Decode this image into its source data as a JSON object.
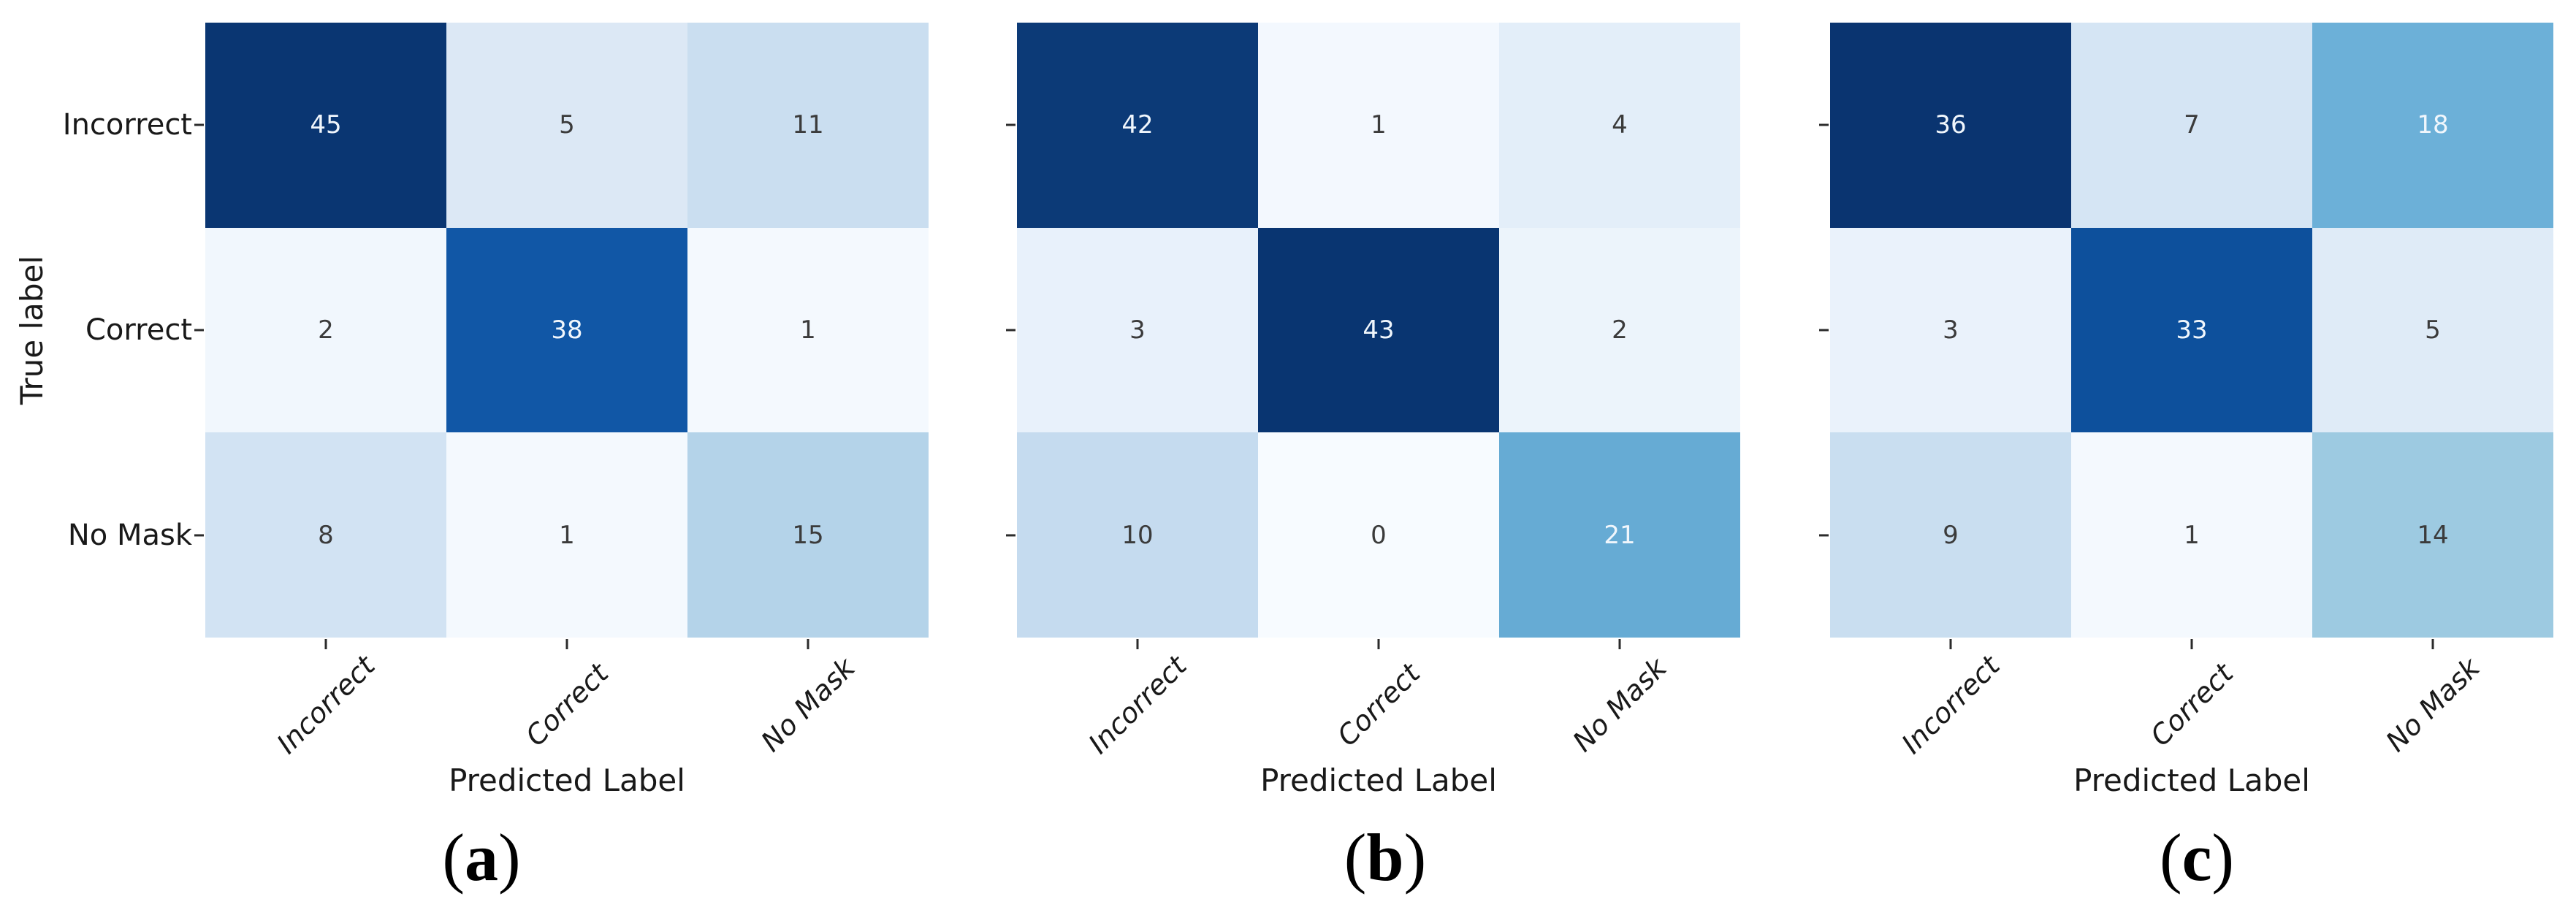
{
  "figure": {
    "x_axis_title": "Predicted Label",
    "y_axis_title": "True label",
    "row_labels": [
      "Incorrect",
      "Correct",
      "No Mask"
    ],
    "col_labels": [
      "Incorrect",
      "Correct",
      "No Mask"
    ],
    "caption_paren_open": "(",
    "caption_paren_close": ")",
    "caption_letters": [
      "a",
      "b",
      "c"
    ],
    "colormap": "Blues",
    "text_palette": {
      "dark_text": "#3b3b3b",
      "light_text": "#f0f6fc"
    },
    "panels": [
      {
        "caption": "a",
        "cell_colors": [
          [
            "#0a3672",
            "#dce8f5",
            "#cadef0"
          ],
          [
            "#f1f7fd",
            "#1157a6",
            "#f4f9fe"
          ],
          [
            "#d2e3f3",
            "#f4f9fe",
            "#b4d3e9"
          ]
        ],
        "text_tones": [
          [
            "light",
            "dark",
            "dark"
          ],
          [
            "dark",
            "light",
            "dark"
          ],
          [
            "dark",
            "dark",
            "dark"
          ]
        ]
      },
      {
        "caption": "b",
        "cell_colors": [
          [
            "#0c3a77",
            "#f3f8fe",
            "#e3eef9"
          ],
          [
            "#e8f1fb",
            "#093571",
            "#ecf4fb"
          ],
          [
            "#c5dbef",
            "#f7fbff",
            "#66abd4"
          ]
        ],
        "text_tones": [
          [
            "light",
            "dark",
            "dark"
          ],
          [
            "dark",
            "light",
            "dark"
          ],
          [
            "dark",
            "dark",
            "light"
          ]
        ]
      },
      {
        "caption": "c",
        "cell_colors": [
          [
            "#0a3470",
            "#d5e5f4",
            "#6cb0d8"
          ],
          [
            "#eaf2fb",
            "#0d509c",
            "#dfebf7"
          ],
          [
            "#c9def0",
            "#f4f9fe",
            "#9dcae1"
          ]
        ],
        "text_tones": [
          [
            "light",
            "dark",
            "light"
          ],
          [
            "dark",
            "light",
            "dark"
          ],
          [
            "dark",
            "dark",
            "dark"
          ]
        ]
      }
    ]
  },
  "chart_data": [
    {
      "type": "heatmap",
      "title": "(a)",
      "x": [
        "Incorrect",
        "Correct",
        "No Mask"
      ],
      "y": [
        "Incorrect",
        "Correct",
        "No Mask"
      ],
      "xlabel": "Predicted Label",
      "ylabel": "True label",
      "values": [
        [
          45,
          5,
          11
        ],
        [
          2,
          38,
          1
        ],
        [
          8,
          1,
          15
        ]
      ],
      "colormap": "Blues",
      "vmin": 0,
      "vmax": 45,
      "legend": "none",
      "grid": false
    },
    {
      "type": "heatmap",
      "title": "(b)",
      "x": [
        "Incorrect",
        "Correct",
        "No Mask"
      ],
      "y": [
        "Incorrect",
        "Correct",
        "No Mask"
      ],
      "xlabel": "Predicted Label",
      "ylabel": "",
      "values": [
        [
          42,
          1,
          4
        ],
        [
          3,
          43,
          2
        ],
        [
          10,
          0,
          21
        ]
      ],
      "colormap": "Blues",
      "vmin": 0,
      "vmax": 43,
      "legend": "none",
      "grid": false
    },
    {
      "type": "heatmap",
      "title": "(c)",
      "x": [
        "Incorrect",
        "Correct",
        "No Mask"
      ],
      "y": [
        "Incorrect",
        "Correct",
        "No Mask"
      ],
      "xlabel": "Predicted Label",
      "ylabel": "",
      "values": [
        [
          36,
          7,
          18
        ],
        [
          3,
          33,
          5
        ],
        [
          9,
          1,
          14
        ]
      ],
      "colormap": "Blues",
      "vmin": 0,
      "vmax": 36,
      "legend": "none",
      "grid": false
    }
  ]
}
